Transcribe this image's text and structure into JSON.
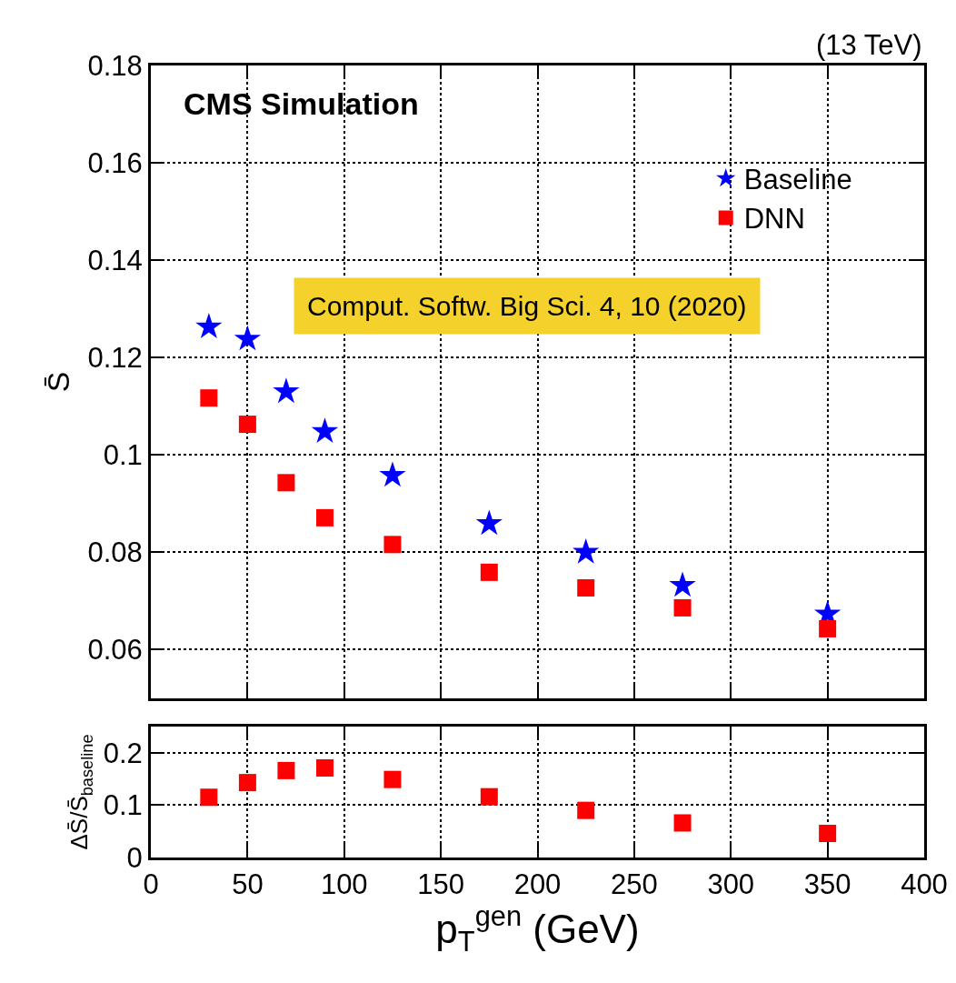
{
  "chart_data": [
    {
      "type": "scatter",
      "ylabel": "S̄",
      "x": [
        30,
        50,
        70,
        90,
        125,
        175,
        225,
        275,
        350
      ],
      "series": [
        {
          "name": "Baseline",
          "color": "#0000ff",
          "marker": "star",
          "values": [
            0.1263,
            0.1238,
            0.113,
            0.1048,
            0.0958,
            0.0859,
            0.08,
            0.0732,
            0.0673
          ]
        },
        {
          "name": "DNN",
          "color": "#ff0000",
          "marker": "square",
          "values": [
            0.1117,
            0.1063,
            0.0943,
            0.0871,
            0.0816,
            0.0759,
            0.0727,
            0.0686,
            0.0643
          ]
        }
      ],
      "xlim": [
        0,
        400
      ],
      "xticks": [
        0,
        50,
        100,
        150,
        200,
        250,
        300,
        350,
        400
      ],
      "ylim": [
        0.05,
        0.18
      ],
      "yticks": [
        0.06,
        0.08,
        0.1,
        0.12,
        0.14,
        0.16,
        0.18
      ],
      "grid": true,
      "legend": "top right",
      "tick_labels": "y",
      "annotations": [
        "CMS Simulation",
        "(13 TeV)",
        "Comput. Softw. Big Sci. 4, 10 (2020)"
      ]
    },
    {
      "type": "scatter",
      "xlabel": "p$_{T}$$^{gen}$ (GeV)",
      "ylabel": "ΔS̄/S̄$_{baseline}$",
      "x": [
        30,
        50,
        70,
        90,
        125,
        175,
        225,
        275,
        350
      ],
      "series": [
        {
          "color": "#ff0000",
          "marker": "square",
          "values": [
            0.115,
            0.143,
            0.166,
            0.171,
            0.149,
            0.116,
            0.09,
            0.066,
            0.046
          ]
        }
      ],
      "xlim": [
        0,
        400
      ],
      "xticks": [
        0,
        50,
        100,
        150,
        200,
        250,
        300,
        350,
        400
      ],
      "ylim": [
        0,
        0.25
      ],
      "yticks": [
        0,
        0.1,
        0.2
      ],
      "grid": true
    }
  ]
}
